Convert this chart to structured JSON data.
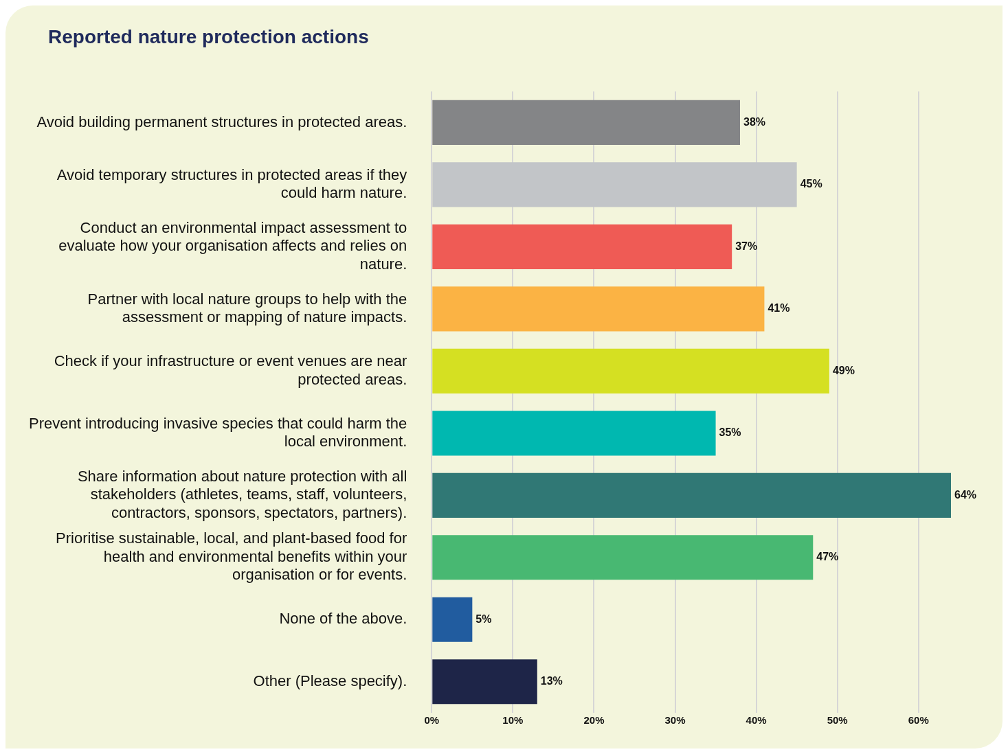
{
  "chart_data": {
    "type": "bar",
    "orientation": "horizontal",
    "title": "Reported nature protection actions",
    "categories": [
      "Avoid building permanent structures in protected areas.",
      "Avoid temporary structures in protected areas if they could harm nature.",
      "Conduct an environmental impact assessment to evaluate how your organisation affects and relies on nature.",
      "Partner with local nature groups to help with the assessment or mapping of nature impacts.",
      "Check if your infrastructure or event venues are near protected areas.",
      "Prevent introducing invasive species that could harm the local environment.",
      "Share information about nature protection with all stakeholders (athletes, teams, staff, volunteers, contractors, sponsors, spectators, partners).",
      "Prioritise sustainable, local, and plant-based food for health and environmental benefits within your organisation or for events.",
      "None of the above.",
      "Other (Please specify)."
    ],
    "values": [
      38,
      45,
      37,
      41,
      49,
      35,
      64,
      47,
      5,
      13
    ],
    "value_labels": [
      "38%",
      "45%",
      "37%",
      "41%",
      "49%",
      "35%",
      "64%",
      "47%",
      "5%",
      "13%"
    ],
    "colors": [
      "#848587",
      "#c2c5c8",
      "#ef5b55",
      "#fbb344",
      "#d5e022",
      "#00b8b0",
      "#307875",
      "#48b872",
      "#215c9f",
      "#1e2548"
    ],
    "xlim": [
      0,
      64
    ],
    "xticks": [
      {
        "value": 0,
        "label": "0%"
      },
      {
        "value": 10,
        "label": "10%"
      },
      {
        "value": 20,
        "label": "20%"
      },
      {
        "value": 30,
        "label": "30%"
      },
      {
        "value": 40,
        "label": "40%"
      },
      {
        "value": 50,
        "label": "50%"
      },
      {
        "value": 60,
        "label": "60%"
      }
    ],
    "grid": "x"
  }
}
